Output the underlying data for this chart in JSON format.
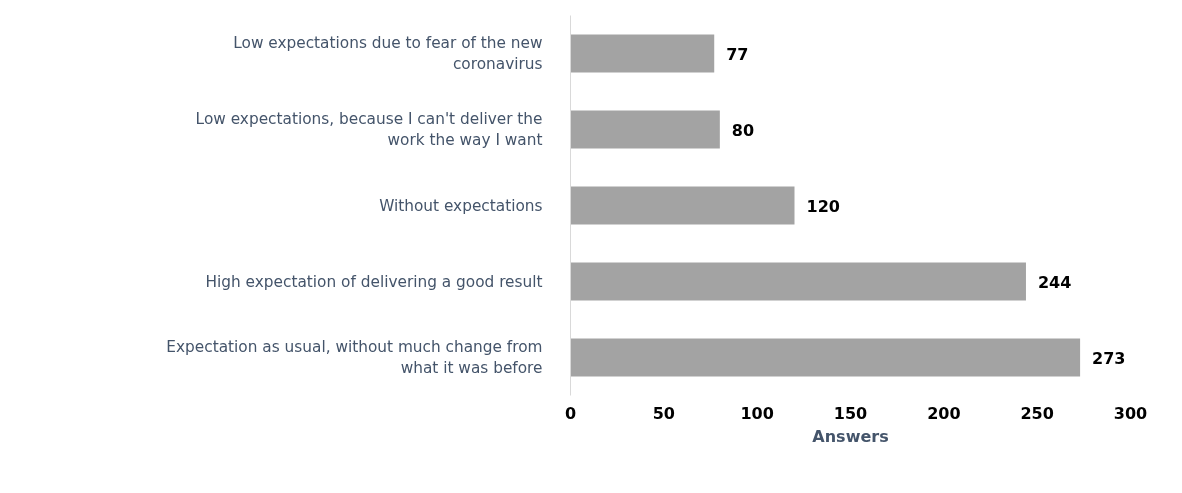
{
  "chart_data": {
    "type": "bar",
    "orientation": "horizontal",
    "xlabel": "Answers",
    "categories": [
      "Low expectations due to fear of the new coronavirus",
      "Low expectations, because I can't deliver the work the way I want",
      "Without expectations",
      "High expectation of delivering a good result",
      "Expectation as usual, without much change from what it was before"
    ],
    "values": [
      77,
      80,
      120,
      244,
      273
    ],
    "color": "#a3a3a3",
    "xlim": [
      0,
      300
    ],
    "xticks": [
      0,
      50,
      100,
      150,
      200,
      250,
      300
    ],
    "data_labels": true,
    "grid": false
  }
}
